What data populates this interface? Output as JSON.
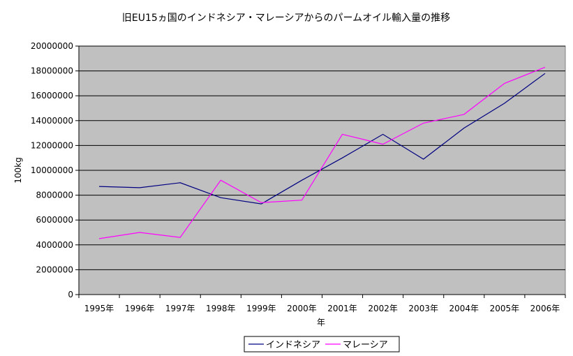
{
  "chart_data": {
    "type": "line",
    "title": "旧EU15ヵ国のインドネシア・マレーシアからのパームオイル輸入量の推移",
    "xlabel": "年",
    "ylabel": "100kg",
    "ylim": [
      0,
      20000000
    ],
    "yticks": [
      "0",
      "2000000",
      "4000000",
      "6000000",
      "8000000",
      "10000000",
      "12000000",
      "14000000",
      "16000000",
      "18000000",
      "20000000"
    ],
    "categories": [
      "1995年",
      "1996年",
      "1997年",
      "1998年",
      "1999年",
      "2000年",
      "2001年",
      "2002年",
      "2003年",
      "2004年",
      "2005年",
      "2006年"
    ],
    "series": [
      {
        "name": "インドネシア",
        "color": "#000080",
        "values": [
          8700000,
          8600000,
          9000000,
          7800000,
          7300000,
          9200000,
          11000000,
          12900000,
          10900000,
          13400000,
          15400000,
          17800000
        ]
      },
      {
        "name": "マレーシア",
        "color": "#ff00ff",
        "values": [
          4500000,
          5000000,
          4600000,
          9200000,
          7400000,
          7600000,
          12900000,
          12100000,
          13800000,
          14500000,
          17000000,
          18300000
        ]
      }
    ],
    "grid": true,
    "plot_background": "#c0c0c0",
    "legend_position": "bottom"
  }
}
